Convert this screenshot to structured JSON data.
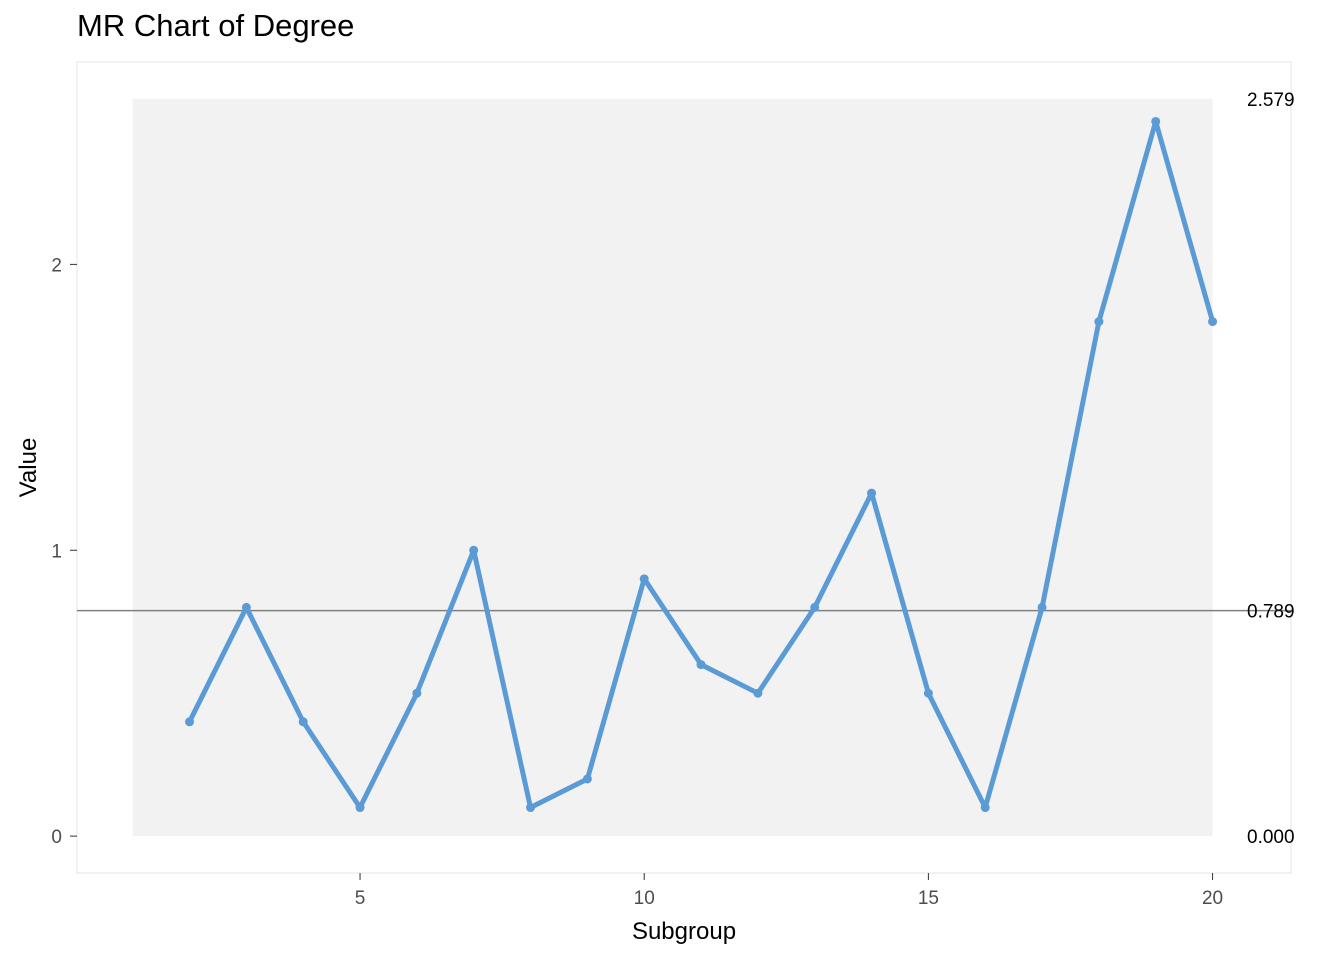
{
  "chart_data": {
    "type": "line",
    "title": "MR Chart of Degree",
    "xlabel": "Subgroup",
    "ylabel": "Value",
    "x": [
      2,
      3,
      4,
      5,
      6,
      7,
      8,
      9,
      10,
      11,
      12,
      13,
      14,
      15,
      16,
      17,
      18,
      19,
      20
    ],
    "values": [
      0.4,
      0.8,
      0.4,
      0.1,
      0.5,
      1.0,
      0.1,
      0.2,
      0.9,
      0.6,
      0.5,
      0.8,
      1.2,
      0.5,
      0.1,
      0.8,
      1.8,
      2.5,
      1.8
    ],
    "xlim": [
      0.02,
      21.38
    ],
    "ylim": [
      -0.129,
      2.708
    ],
    "x_ticks": [
      "5",
      "10",
      "15",
      "20"
    ],
    "x_tick_values": [
      5,
      10,
      15,
      20
    ],
    "y_ticks": [
      "0",
      "1",
      "2"
    ],
    "y_tick_values": [
      0,
      1,
      2
    ],
    "center_line": 0.789,
    "limits": {
      "lower": 0.0,
      "center": 0.789,
      "upper": 2.579,
      "lower_label": "0.000",
      "center_label": "0.789",
      "upper_label": "2.579"
    },
    "series_color": "#5b9bd5",
    "band_color": "#f2f2f2",
    "center_line_color": "#808080",
    "grid": false
  }
}
